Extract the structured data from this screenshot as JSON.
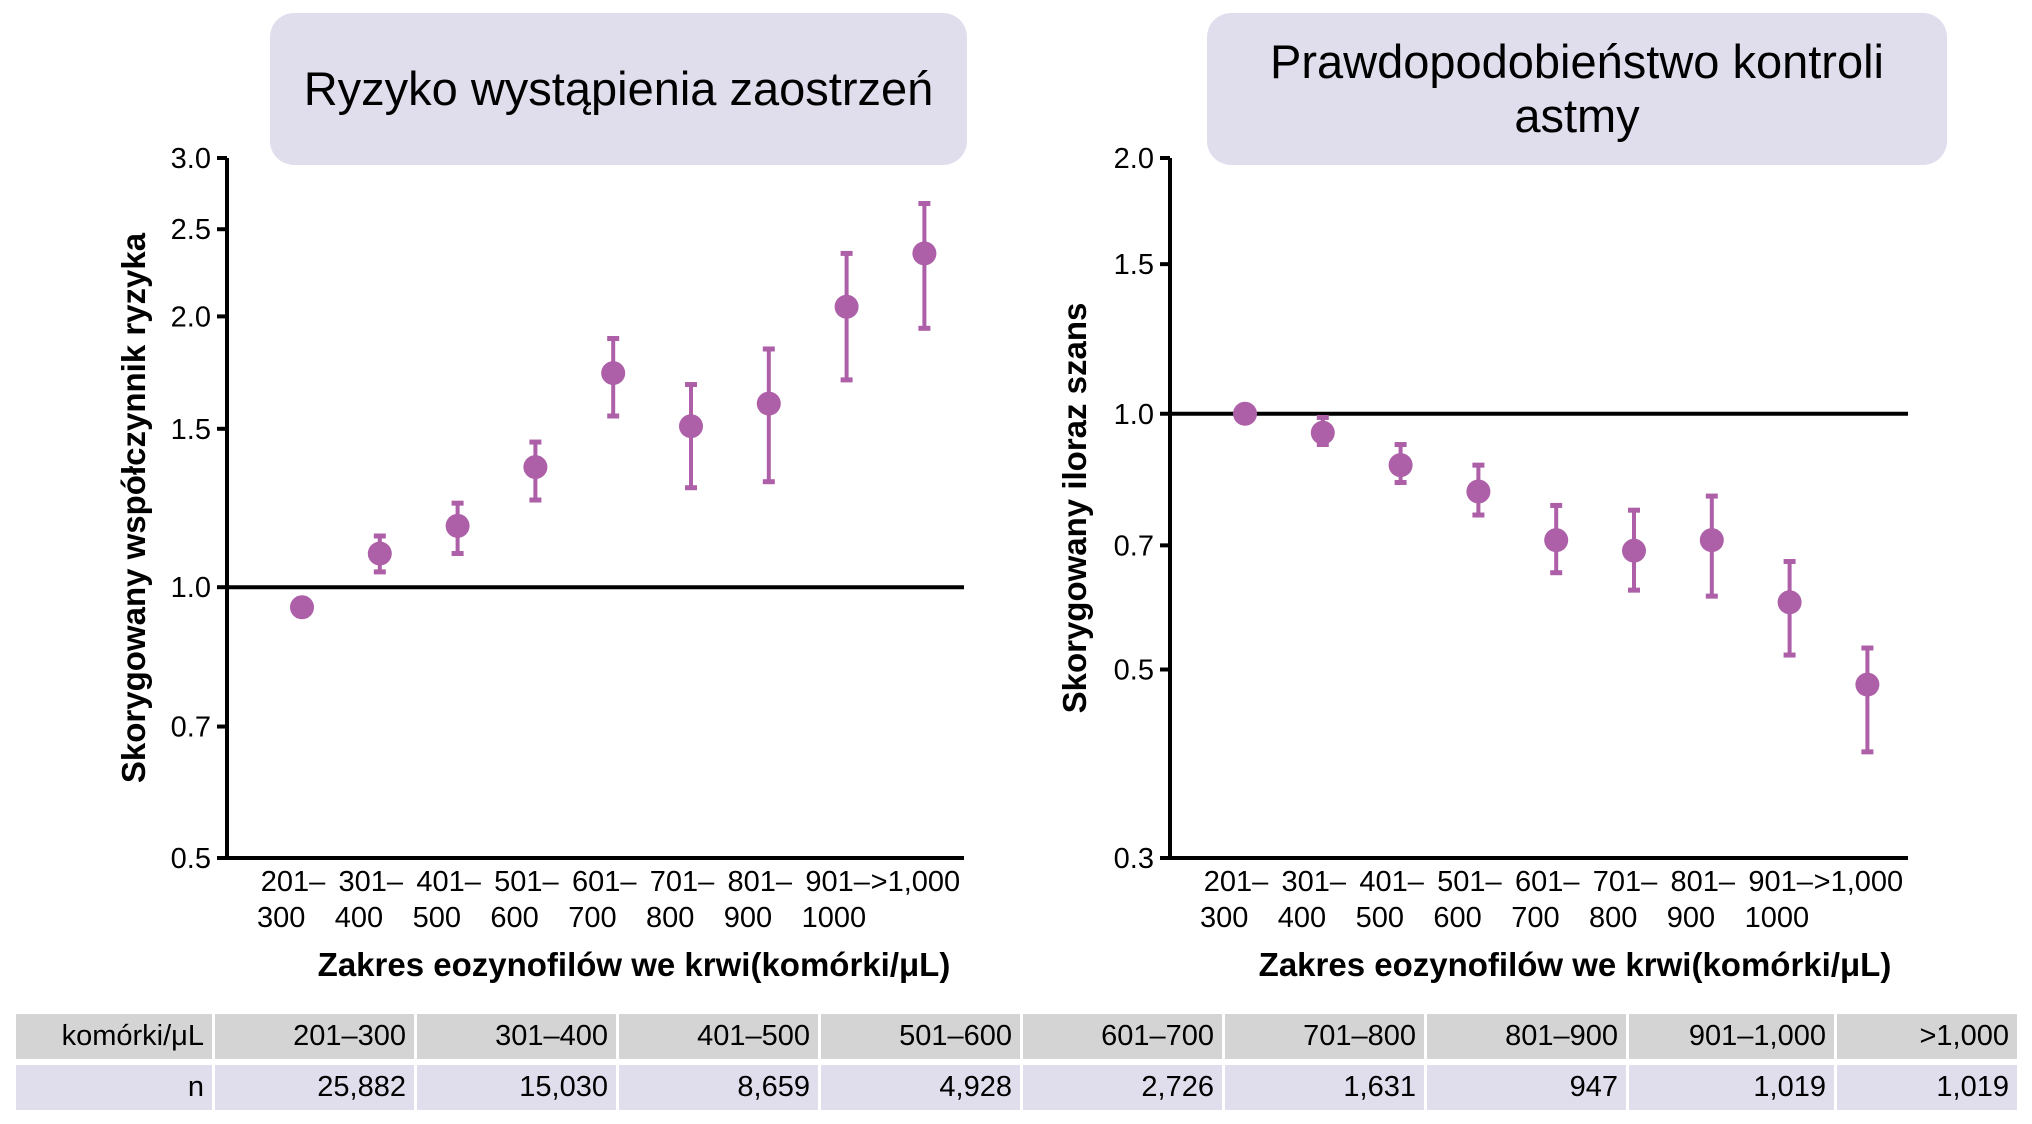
{
  "colors": {
    "marker": "#ad5fa8",
    "title_bg": "#e0deed",
    "header_bg": "#d4d4d4",
    "row_bg": "#e0deed"
  },
  "chart_data": [
    {
      "type": "scatter",
      "title": "Ryzyko wystąpienia zaostrzeń",
      "xlabel": "Zakres eozynofilów we krwi(komórki/μL)",
      "ylabel": "Skorygowany współczynnik ryzyka",
      "yscale": "log",
      "ylim": [
        0.5,
        3.0
      ],
      "yticks": [
        0.5,
        0.7,
        1.0,
        1.5,
        2.0,
        2.5,
        3.0
      ],
      "ytick_labels": [
        "0.5",
        "0.7",
        "1.0",
        "1.5",
        "2.0",
        "2.5",
        "3.0"
      ],
      "reference_line": 1.0,
      "categories": [
        [
          "201–",
          "300"
        ],
        [
          "301–",
          "400"
        ],
        [
          "401–",
          "500"
        ],
        [
          "501–",
          "600"
        ],
        [
          "601–",
          "700"
        ],
        [
          "701–",
          "800"
        ],
        [
          "801–",
          "900"
        ],
        [
          "901–",
          "1000"
        ],
        [
          ">1,000",
          ""
        ]
      ],
      "values": [
        0.95,
        1.09,
        1.17,
        1.36,
        1.73,
        1.51,
        1.6,
        2.05,
        2.35
      ],
      "ci_low": [
        0.93,
        1.04,
        1.09,
        1.25,
        1.55,
        1.29,
        1.31,
        1.7,
        1.94
      ],
      "ci_high": [
        0.97,
        1.14,
        1.24,
        1.45,
        1.89,
        1.68,
        1.84,
        2.35,
        2.67
      ],
      "grid": false
    },
    {
      "type": "scatter",
      "title": "Prawdopodobieństwo kontroli astmy",
      "xlabel": "Zakres eozynofilów we krwi(komórki/μL)",
      "ylabel": "Skorygowany iloraz szans",
      "yscale": "log",
      "ylim": [
        0.3,
        2.0
      ],
      "yticks": [
        0.3,
        0.5,
        0.7,
        1.0,
        1.5,
        2.0
      ],
      "ytick_labels": [
        "0.3",
        "0.5",
        "0.7",
        "1.0",
        "1.5",
        "2.0"
      ],
      "reference_line": 1.0,
      "categories": [
        [
          "201–",
          "300"
        ],
        [
          "301–",
          "400"
        ],
        [
          "401–",
          "500"
        ],
        [
          "501–",
          "600"
        ],
        [
          "601–",
          "700"
        ],
        [
          "701–",
          "800"
        ],
        [
          "801–",
          "900"
        ],
        [
          "901–",
          "1000"
        ],
        [
          ">1,000",
          ""
        ]
      ],
      "values": [
        1.0,
        0.95,
        0.87,
        0.81,
        0.71,
        0.69,
        0.71,
        0.6,
        0.48
      ],
      "ci_low": [
        0.98,
        0.92,
        0.83,
        0.76,
        0.65,
        0.62,
        0.61,
        0.52,
        0.4
      ],
      "ci_high": [
        1.02,
        0.99,
        0.92,
        0.87,
        0.78,
        0.77,
        0.8,
        0.67,
        0.53
      ],
      "grid": false
    }
  ],
  "table": {
    "header": [
      "komórki/μL",
      "201–300",
      "301–400",
      "401–500",
      "501–600",
      "601–700",
      "701–800",
      "801–900",
      "901–1,000",
      ">1,000"
    ],
    "row": [
      "n",
      "25,882",
      "15,030",
      "8,659",
      "4,928",
      "2,726",
      "1,631",
      "947",
      "1,019",
      "1,019"
    ]
  }
}
